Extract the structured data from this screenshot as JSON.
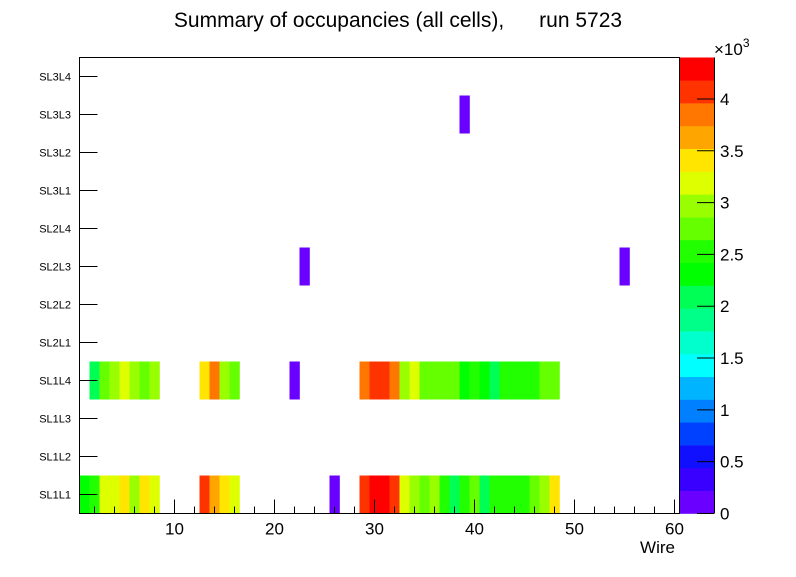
{
  "chart_data": {
    "type": "heatmap",
    "title": "Summary of occupancies (all cells),      run 5723",
    "xlabel": "Wire",
    "ylabel": "",
    "xlim": [
      0.5,
      60.5
    ],
    "x_ticks": [
      "10",
      "20",
      "30",
      "40",
      "50",
      "60"
    ],
    "x_tick_values": [
      10,
      20,
      30,
      40,
      50,
      60
    ],
    "y_categories": [
      "SL1L1",
      "SL1L2",
      "SL1L3",
      "SL1L4",
      "SL2L1",
      "SL2L2",
      "SL2L3",
      "SL2L4",
      "SL3L1",
      "SL3L2",
      "SL3L3",
      "SL3L4"
    ],
    "zlim": [
      0,
      4400
    ],
    "z_multiplier_label": "×10",
    "z_multiplier_exp": "3",
    "z_ticks": [
      "0",
      "0.5",
      "1",
      "1.5",
      "2",
      "2.5",
      "3",
      "3.5",
      "4"
    ],
    "z_tick_values": [
      0,
      500,
      1000,
      1500,
      2000,
      2500,
      3000,
      3500,
      4000
    ],
    "palette": [
      "#6a00ff",
      "#3a00ff",
      "#1010ff",
      "#0040ff",
      "#0080ff",
      "#00b4ff",
      "#00ffff",
      "#00ffcc",
      "#00ff88",
      "#00ff55",
      "#00ff00",
      "#22ff00",
      "#66ff00",
      "#99ff00",
      "#ddff00",
      "#ffe500",
      "#ffa500",
      "#ff7700",
      "#ff3300",
      "#ff0000"
    ],
    "cells": {
      "SL1L1": [
        [
          1,
          2310
        ],
        [
          2,
          2530
        ],
        [
          3,
          3190
        ],
        [
          4,
          3190
        ],
        [
          5,
          3410
        ],
        [
          6,
          2970
        ],
        [
          7,
          3410
        ],
        [
          8,
          3190
        ],
        [
          13,
          4070
        ],
        [
          14,
          3630
        ],
        [
          15,
          3410
        ],
        [
          16,
          3190
        ],
        [
          26,
          110
        ],
        [
          29,
          4070
        ],
        [
          30,
          4290
        ],
        [
          31,
          4290
        ],
        [
          32,
          4070
        ],
        [
          33,
          3190
        ],
        [
          34,
          2970
        ],
        [
          35,
          2750
        ],
        [
          36,
          2970
        ],
        [
          37,
          2530
        ],
        [
          38,
          2090
        ],
        [
          39,
          2530
        ],
        [
          40,
          2750
        ],
        [
          41,
          2090
        ],
        [
          42,
          2530
        ],
        [
          43,
          2530
        ],
        [
          44,
          2530
        ],
        [
          45,
          2530
        ],
        [
          46,
          2750
        ],
        [
          47,
          2970
        ],
        [
          48,
          3410
        ]
      ],
      "SL1L2": [],
      "SL1L3": [],
      "SL1L4": [
        [
          2,
          2090
        ],
        [
          3,
          2750
        ],
        [
          4,
          2970
        ],
        [
          5,
          3190
        ],
        [
          6,
          2970
        ],
        [
          7,
          2750
        ],
        [
          8,
          2970
        ],
        [
          13,
          3410
        ],
        [
          14,
          3850
        ],
        [
          15,
          2970
        ],
        [
          16,
          2750
        ],
        [
          22,
          110
        ],
        [
          29,
          3850
        ],
        [
          30,
          4070
        ],
        [
          31,
          4070
        ],
        [
          32,
          3850
        ],
        [
          33,
          2970
        ],
        [
          34,
          3190
        ],
        [
          35,
          2750
        ],
        [
          36,
          2750
        ],
        [
          37,
          2750
        ],
        [
          38,
          2750
        ],
        [
          39,
          2310
        ],
        [
          40,
          2530
        ],
        [
          41,
          2310
        ],
        [
          42,
          2090
        ],
        [
          43,
          2530
        ],
        [
          44,
          2530
        ],
        [
          45,
          2530
        ],
        [
          46,
          2530
        ],
        [
          47,
          2750
        ],
        [
          48,
          2750
        ]
      ],
      "SL2L1": [],
      "SL2L2": [],
      "SL2L3": [
        [
          23,
          110
        ],
        [
          55,
          110
        ]
      ],
      "SL2L4": [],
      "SL3L1": [],
      "SL3L2": [],
      "SL3L3": [
        [
          39,
          110
        ]
      ],
      "SL3L4": []
    }
  }
}
